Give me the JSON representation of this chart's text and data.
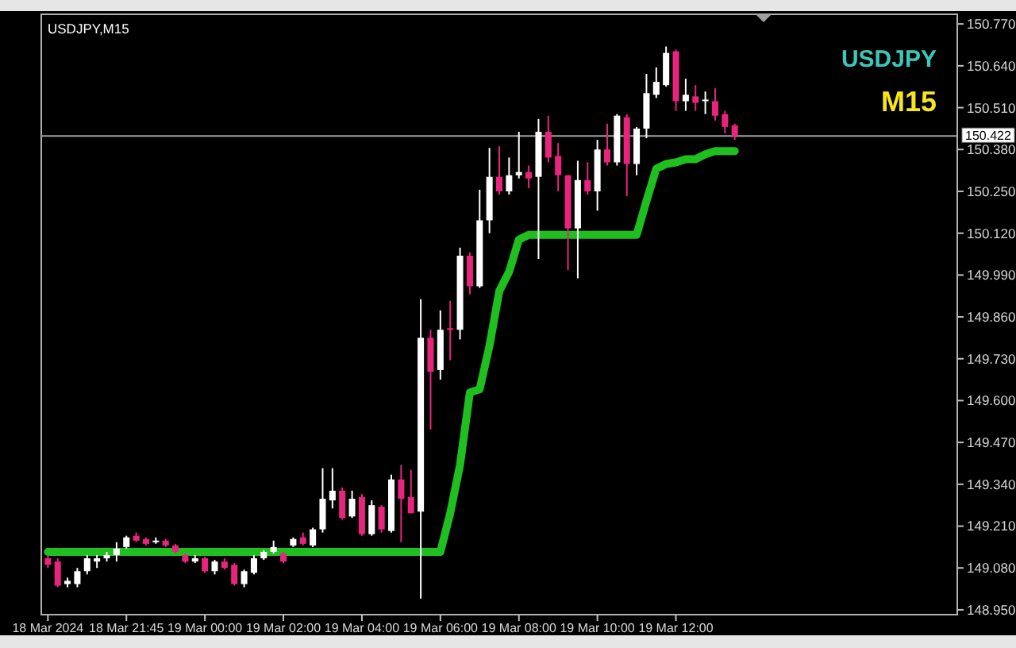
{
  "chart_data": {
    "type": "candlestick",
    "title": "USDJPY,M15",
    "annotations": [
      "USDJPY",
      "M15"
    ],
    "categories": [
      "18 Mar 2024",
      null,
      null,
      null,
      null,
      null,
      null,
      null,
      "18 Mar 21:45",
      null,
      null,
      null,
      null,
      null,
      null,
      null,
      "19 Mar 00:00",
      null,
      null,
      null,
      null,
      null,
      null,
      null,
      "19 Mar 02:00",
      null,
      null,
      null,
      null,
      null,
      null,
      null,
      "19 Mar 04:00",
      null,
      null,
      null,
      null,
      null,
      null,
      null,
      "19 Mar 06:00",
      null,
      null,
      null,
      null,
      null,
      null,
      null,
      "19 Mar 08:00",
      null,
      null,
      null,
      null,
      null,
      null,
      null,
      "19 Mar 10:00",
      null,
      null,
      null,
      null,
      null,
      null,
      null,
      "19 Mar 12:00",
      null,
      null,
      null,
      null,
      null,
      null,
      null,
      null,
      null,
      null,
      null,
      null,
      null,
      null,
      null,
      null,
      null,
      null,
      null,
      null,
      null,
      null,
      null,
      null,
      null,
      null,
      null,
      null
    ],
    "ohlc": [
      [
        149.11,
        149.12,
        149.08,
        149.09
      ],
      [
        149.1,
        149.11,
        149.02,
        149.025
      ],
      [
        149.03,
        149.05,
        149.02,
        149.04
      ],
      [
        149.03,
        149.08,
        149.02,
        149.07
      ],
      [
        149.07,
        149.12,
        149.06,
        149.11
      ],
      [
        149.1,
        149.12,
        149.08,
        149.11
      ],
      [
        149.11,
        149.13,
        149.1,
        149.12
      ],
      [
        149.12,
        149.16,
        149.1,
        149.14
      ],
      [
        149.145,
        149.18,
        149.14,
        149.175
      ],
      [
        149.18,
        149.19,
        149.16,
        149.165
      ],
      [
        149.17,
        149.175,
        149.15,
        149.155
      ],
      [
        149.16,
        149.175,
        149.155,
        149.165
      ],
      [
        149.165,
        149.17,
        149.145,
        149.15
      ],
      [
        149.15,
        149.155,
        149.125,
        149.13
      ],
      [
        149.12,
        149.125,
        149.095,
        149.1
      ],
      [
        149.1,
        149.12,
        149.095,
        149.11
      ],
      [
        149.11,
        149.115,
        149.065,
        149.07
      ],
      [
        149.07,
        149.105,
        149.06,
        149.1
      ],
      [
        149.1,
        149.11,
        149.075,
        149.08
      ],
      [
        149.09,
        149.095,
        149.025,
        149.03
      ],
      [
        149.03,
        149.075,
        149.02,
        149.07
      ],
      [
        149.065,
        149.12,
        149.06,
        149.11
      ],
      [
        149.11,
        149.135,
        149.105,
        149.13
      ],
      [
        149.13,
        149.165,
        149.125,
        149.145
      ],
      [
        149.125,
        149.13,
        149.095,
        149.1
      ],
      [
        149.15,
        149.175,
        149.145,
        149.17
      ],
      [
        149.175,
        149.19,
        149.15,
        149.155
      ],
      [
        149.15,
        149.205,
        149.145,
        149.2
      ],
      [
        149.2,
        149.39,
        149.19,
        149.295
      ],
      [
        149.29,
        149.39,
        149.265,
        149.32
      ],
      [
        149.32,
        149.33,
        149.23,
        149.235
      ],
      [
        149.24,
        149.32,
        149.235,
        149.295
      ],
      [
        149.3,
        149.31,
        149.18,
        149.185
      ],
      [
        149.185,
        149.29,
        149.18,
        149.275
      ],
      [
        149.27,
        149.275,
        149.19,
        149.2
      ],
      [
        149.195,
        149.37,
        149.19,
        149.355
      ],
      [
        149.355,
        149.4,
        149.16,
        149.295
      ],
      [
        149.3,
        149.385,
        149.25,
        149.25
      ],
      [
        149.255,
        149.915,
        148.985,
        149.795
      ],
      [
        149.795,
        149.82,
        149.51,
        149.69
      ],
      [
        149.695,
        149.88,
        149.665,
        149.82
      ],
      [
        149.825,
        149.91,
        149.725,
        149.82
      ],
      [
        149.82,
        150.075,
        149.79,
        150.05
      ],
      [
        150.05,
        150.06,
        149.93,
        149.955
      ],
      [
        149.955,
        150.255,
        149.95,
        150.16
      ],
      [
        150.16,
        150.385,
        150.12,
        150.295
      ],
      [
        150.295,
        150.39,
        150.24,
        150.25
      ],
      [
        150.25,
        150.355,
        150.24,
        150.3
      ],
      [
        150.3,
        150.435,
        150.29,
        150.31
      ],
      [
        150.31,
        150.33,
        150.26,
        150.29
      ],
      [
        150.295,
        150.475,
        150.04,
        150.435
      ],
      [
        150.435,
        150.485,
        150.34,
        150.355
      ],
      [
        150.36,
        150.4,
        150.25,
        150.3
      ],
      [
        150.3,
        150.3,
        150.005,
        150.135
      ],
      [
        150.135,
        150.345,
        149.98,
        150.285
      ],
      [
        150.285,
        150.34,
        150.24,
        150.25
      ],
      [
        150.25,
        150.41,
        150.19,
        150.38
      ],
      [
        150.38,
        150.46,
        150.33,
        150.34
      ],
      [
        150.34,
        150.49,
        150.33,
        150.485
      ],
      [
        150.48,
        150.49,
        150.235,
        150.335
      ],
      [
        150.335,
        150.45,
        150.3,
        150.445
      ],
      [
        150.445,
        150.615,
        150.415,
        150.555
      ],
      [
        150.55,
        150.635,
        150.54,
        150.59
      ],
      [
        150.58,
        150.7,
        150.575,
        150.68
      ],
      [
        150.685,
        150.69,
        150.5,
        150.53
      ],
      [
        150.53,
        150.6,
        150.5,
        150.55
      ],
      [
        150.545,
        150.58,
        150.5,
        150.525
      ],
      [
        150.53,
        150.56,
        150.49,
        150.535
      ],
      [
        150.53,
        150.57,
        150.47,
        150.485
      ],
      [
        150.49,
        150.5,
        150.43,
        150.45
      ],
      [
        150.455,
        150.46,
        150.41,
        150.422
      ],
      null,
      null,
      null,
      null,
      null,
      null,
      null,
      null,
      null,
      null,
      null,
      null,
      null,
      null,
      null,
      null,
      null,
      null,
      null,
      null,
      null,
      null
    ],
    "colors": [
      "#e8257d",
      "#e8257d",
      "#ffffff",
      "#ffffff",
      "#ffffff",
      "#ffffff",
      "#ffffff",
      "#ffffff",
      "#ffffff",
      "#e8257d",
      "#e8257d",
      "#ffffff",
      "#e8257d",
      "#e8257d",
      "#e8257d",
      "#ffffff",
      "#e8257d",
      "#ffffff",
      "#e8257d",
      "#e8257d",
      "#ffffff",
      "#ffffff",
      "#ffffff",
      "#ffffff",
      "#e8257d",
      "#ffffff",
      "#e8257d",
      "#ffffff",
      "#ffffff",
      "#ffffff",
      "#e8257d",
      "#ffffff",
      "#e8257d",
      "#ffffff",
      "#e8257d",
      "#ffffff",
      "#e8257d",
      "#e8257d",
      "#ffffff",
      "#e8257d",
      "#ffffff",
      "#e8257d",
      "#ffffff",
      "#e8257d",
      "#ffffff",
      "#ffffff",
      "#e8257d",
      "#ffffff",
      "#ffffff",
      "#e8257d",
      "#ffffff",
      "#e8257d",
      "#e8257d",
      "#e8257d",
      "#ffffff",
      "#e8257d",
      "#ffffff",
      "#e8257d",
      "#ffffff",
      "#e8257d",
      "#ffffff",
      "#ffffff",
      "#ffffff",
      "#ffffff",
      "#e8257d",
      "#ffffff",
      "#e8257d",
      "#ffffff",
      "#e8257d",
      "#e8257d",
      "#e8257d",
      null,
      null,
      null,
      null,
      null,
      null,
      null,
      null,
      null,
      null,
      null,
      null,
      null,
      null,
      null,
      null,
      null,
      null,
      null,
      null,
      null,
      null
    ],
    "series": [
      {
        "type": "line",
        "color": "#1fbf1f",
        "values": [
          149.13,
          149.13,
          149.13,
          149.13,
          149.13,
          149.13,
          149.13,
          149.13,
          149.13,
          149.13,
          149.13,
          149.13,
          149.13,
          149.13,
          149.13,
          149.13,
          149.13,
          149.13,
          149.13,
          149.13,
          149.13,
          149.13,
          149.13,
          149.13,
          149.13,
          149.13,
          149.13,
          149.13,
          149.13,
          149.13,
          149.13,
          149.13,
          149.13,
          149.13,
          149.13,
          149.13,
          149.13,
          149.13,
          149.13,
          149.13,
          149.13,
          149.25,
          149.4,
          149.625,
          149.635,
          149.77,
          149.94,
          150.0,
          150.1,
          150.115,
          150.115,
          150.115,
          150.115,
          150.115,
          150.115,
          150.115,
          150.115,
          150.115,
          150.115,
          150.115,
          150.115,
          150.22,
          150.32,
          150.335,
          150.34,
          150.35,
          150.35,
          150.365,
          150.375,
          150.375,
          150.375,
          null,
          null,
          null,
          null,
          null,
          null,
          null,
          null,
          null,
          null,
          null,
          null,
          null,
          null,
          null,
          null,
          null,
          null,
          null,
          null,
          null,
          null
        ]
      }
    ],
    "ylim": [
      148.935,
      150.8
    ],
    "yticks": [
      {
        "value": 150.77,
        "label": "150.770"
      },
      {
        "value": 150.64,
        "label": "150.640"
      },
      {
        "value": 150.51,
        "label": "150.510"
      },
      {
        "value": 150.38,
        "label": "150.380"
      },
      {
        "value": 150.25,
        "label": "150.250"
      },
      {
        "value": 150.12,
        "label": "150.120"
      },
      {
        "value": 149.99,
        "label": "149.990"
      },
      {
        "value": 149.86,
        "label": "149.860"
      },
      {
        "value": 149.73,
        "label": "149.730"
      },
      {
        "value": 149.6,
        "label": "149.600"
      },
      {
        "value": 149.47,
        "label": "149.470"
      },
      {
        "value": 149.34,
        "label": "149.340"
      },
      {
        "value": 149.21,
        "label": "149.210"
      },
      {
        "value": 149.08,
        "label": "149.080"
      },
      {
        "value": 148.95,
        "label": "148.950"
      }
    ],
    "ref_lines": [
      {
        "axis": "y",
        "value": 150.422,
        "label": "150.422",
        "color": "#a0a0a0"
      }
    ],
    "grid": false
  }
}
